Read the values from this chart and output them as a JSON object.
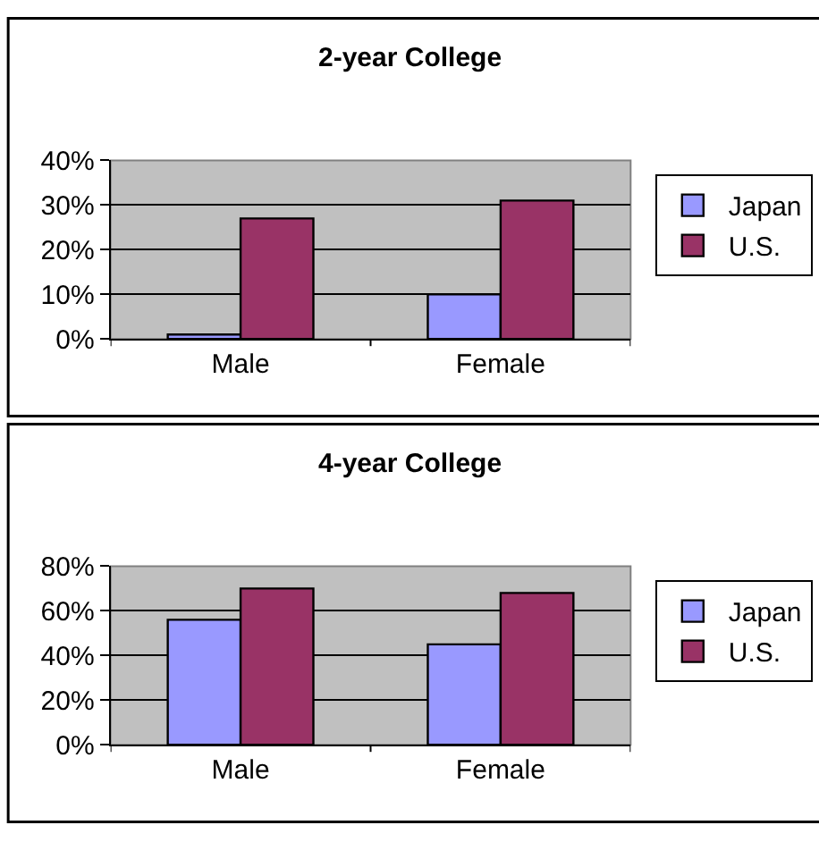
{
  "chart_data": [
    {
      "type": "bar",
      "title": "2-year College",
      "categories": [
        "Male",
        "Female"
      ],
      "series": [
        {
          "name": "Japan",
          "color": "#9999ff",
          "values": [
            1,
            10
          ]
        },
        {
          "name": "U.S.",
          "color": "#993366",
          "values": [
            27,
            31
          ]
        }
      ],
      "ylim": [
        0,
        40
      ],
      "yticks": [
        {
          "value": 0,
          "label": "0%"
        },
        {
          "value": 10,
          "label": "10%"
        },
        {
          "value": 20,
          "label": "20%"
        },
        {
          "value": 30,
          "label": "30%"
        },
        {
          "value": 40,
          "label": "40%"
        }
      ],
      "grid": "y",
      "legend": "right"
    },
    {
      "type": "bar",
      "title": "4-year College",
      "categories": [
        "Male",
        "Female"
      ],
      "series": [
        {
          "name": "Japan",
          "color": "#9999ff",
          "values": [
            56,
            45
          ]
        },
        {
          "name": "U.S.",
          "color": "#993366",
          "values": [
            70,
            68
          ]
        }
      ],
      "ylim": [
        0,
        80
      ],
      "yticks": [
        {
          "value": 0,
          "label": "0%"
        },
        {
          "value": 20,
          "label": "20%"
        },
        {
          "value": 40,
          "label": "40%"
        },
        {
          "value": 60,
          "label": "60%"
        },
        {
          "value": 80,
          "label": "80%"
        }
      ],
      "grid": "y",
      "legend": "right"
    }
  ]
}
